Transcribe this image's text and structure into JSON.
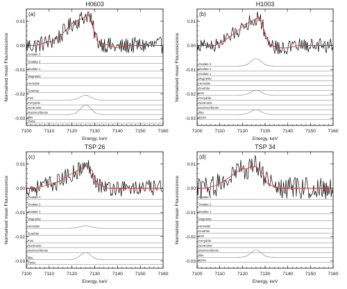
{
  "chart_data": [
    {
      "type": "line",
      "title": "H0603",
      "panel_label": "(a)",
      "xlabel": "Energy, keV",
      "ylabel": "Normalised mean Flouresscence",
      "xlim": [
        7100,
        7160
      ],
      "ylim": [
        -0.033,
        0.015
      ],
      "xticks": [
        7100,
        7110,
        7120,
        7130,
        7140,
        7150,
        7160
      ],
      "yticks": [
        0.01,
        0.0,
        -0.01,
        -0.02,
        -0.03
      ],
      "ytick_labels": [
        "0.01",
        "0.00",
        "-0.01",
        "-0.02",
        "-0.03"
      ],
      "grid": false,
      "series": [
        {
          "name": "",
          "role": "data",
          "color": "#000000",
          "x": [
            7100,
            7104,
            7108,
            7112,
            7115,
            7118,
            7120,
            7122,
            7124,
            7126,
            7127,
            7128,
            7129,
            7130,
            7131,
            7133,
            7136,
            7140,
            7145,
            7150,
            7155,
            7160
          ],
          "y": [
            0.0,
            0.0,
            0.001,
            0.002,
            0.004,
            0.007,
            0.009,
            0.01,
            0.011,
            0.012,
            0.013,
            0.011,
            0.008,
            0.005,
            0.002,
            0.001,
            0.0,
            -0.001,
            0.0,
            0.0,
            0.0,
            0.0
          ],
          "noise": 0.0035
        },
        {
          "name": "",
          "role": "fit",
          "color": "#e03030",
          "x": [
            7100,
            7104,
            7108,
            7112,
            7115,
            7118,
            7120,
            7122,
            7124,
            7126,
            7127,
            7128,
            7129,
            7130,
            7131,
            7133,
            7136,
            7140,
            7145,
            7150,
            7155,
            7160
          ],
          "y": [
            0.0,
            0.0,
            0.001,
            0.002,
            0.004,
            0.007,
            0.009,
            0.01,
            0.011,
            0.012,
            0.013,
            0.011,
            0.008,
            0.005,
            0.002,
            0.001,
            0.0,
            -0.001,
            0.0,
            0.0,
            0.0,
            0.0
          ]
        }
      ],
      "components": [
        {
          "name": "Oxalate 3",
          "baseline": -0.0045,
          "peak": 0.0
        },
        {
          "name": "Oxalate 2",
          "baseline": -0.0075,
          "peak": 0.0
        },
        {
          "name": "Oxalate 1",
          "baseline": -0.0105,
          "peak": 0.0
        },
        {
          "name": "Magnetite",
          "baseline": -0.0135,
          "peak": 0.0
        },
        {
          "name": "Hematite",
          "baseline": -0.0165,
          "peak": 0.0
        },
        {
          "name": "Goethite",
          "baseline": -0.0195,
          "peak": 0.0
        },
        {
          "name": "FeO",
          "baseline": -0.0225,
          "peak": 0.002
        },
        {
          "name": "Ferrydrite",
          "baseline": -0.0245,
          "peak": 0.0
        },
        {
          "name": "Nontronite",
          "baseline": -0.0265,
          "peak": 0.0
        },
        {
          "name": "Montmorillonite",
          "baseline": -0.0285,
          "peak": 0.004
        },
        {
          "name": "Illite",
          "baseline": -0.0305,
          "peak": 0.0
        },
        {
          "name": "Pyrite",
          "baseline": -0.032,
          "peak": 0.0
        }
      ]
    },
    {
      "type": "line",
      "title": "H1003",
      "panel_label": "(b)",
      "xlabel": "Energy, keV",
      "ylabel": "Normalised mean Flouresscence",
      "xlim": [
        7100,
        7160
      ],
      "ylim": [
        -0.033,
        0.015
      ],
      "xticks": [
        7100,
        7110,
        7120,
        7130,
        7140,
        7150,
        7160
      ],
      "yticks": [
        0.01,
        0.0,
        -0.01,
        -0.02,
        -0.03
      ],
      "ytick_labels": [
        "0.01",
        "0.00",
        "-0.01",
        "-0.02",
        "-0.03"
      ],
      "grid": false,
      "series": [
        {
          "name": "",
          "role": "data",
          "color": "#000000",
          "x": [
            7100,
            7104,
            7108,
            7112,
            7115,
            7118,
            7120,
            7122,
            7124,
            7126,
            7127,
            7128,
            7129,
            7130,
            7131,
            7133,
            7136,
            7140,
            7145,
            7150,
            7155,
            7160
          ],
          "y": [
            0.0,
            0.0,
            0.0,
            0.002,
            0.004,
            0.006,
            0.008,
            0.009,
            0.01,
            0.011,
            0.012,
            0.01,
            0.008,
            0.005,
            0.002,
            0.0,
            -0.001,
            -0.001,
            0.0,
            0.0,
            0.0,
            0.0
          ],
          "noise": 0.003
        },
        {
          "name": "",
          "role": "fit",
          "color": "#e03030",
          "x": [
            7100,
            7104,
            7108,
            7112,
            7115,
            7118,
            7120,
            7122,
            7124,
            7126,
            7127,
            7128,
            7129,
            7130,
            7131,
            7133,
            7136,
            7140,
            7145,
            7150,
            7155,
            7160
          ],
          "y": [
            0.0,
            0.0,
            0.0,
            0.002,
            0.004,
            0.006,
            0.008,
            0.009,
            0.01,
            0.011,
            0.012,
            0.01,
            0.008,
            0.005,
            0.002,
            0.0,
            -0.001,
            -0.001,
            0.0,
            0.0,
            0.0,
            0.0
          ]
        }
      ],
      "components": [
        {
          "name": "Oxalate 3",
          "baseline": -0.0085,
          "peak": 0.003
        },
        {
          "name": "Oxalate 2",
          "baseline": -0.0105,
          "peak": 0.0
        },
        {
          "name": "Oxalate 1",
          "baseline": -0.0125,
          "peak": 0.0
        },
        {
          "name": "Magnetite",
          "baseline": -0.0145,
          "peak": 0.0
        },
        {
          "name": "Hematite",
          "baseline": -0.0165,
          "peak": 0.0
        },
        {
          "name": "Goethite",
          "baseline": -0.0185,
          "peak": 0.0
        },
        {
          "name": "FeO",
          "baseline": -0.0205,
          "peak": 0.002
        },
        {
          "name": "Ferrydrite",
          "baseline": -0.0225,
          "peak": 0.0
        },
        {
          "name": "Nontronite",
          "baseline": -0.0245,
          "peak": 0.0
        },
        {
          "name": "Montmorillonite",
          "baseline": -0.0265,
          "peak": 0.0
        },
        {
          "name": "Illite",
          "baseline": -0.0285,
          "peak": 0.002
        },
        {
          "name": "Pyrite",
          "baseline": -0.0305,
          "peak": 0.0
        }
      ]
    },
    {
      "type": "line",
      "title": "TSP 26",
      "panel_label": "(c)",
      "xlabel": "Energy, keV",
      "ylabel": "Normalised mean Flouresscence",
      "xlim": [
        7100,
        7160
      ],
      "ylim": [
        -0.033,
        0.015
      ],
      "xticks": [
        7100,
        7110,
        7120,
        7130,
        7140,
        7150,
        7160
      ],
      "yticks": [
        0.01,
        0.0,
        -0.01,
        -0.02,
        -0.03
      ],
      "ytick_labels": [
        "0.01",
        "0.00",
        "-0.01",
        "-0.02",
        "-0.03"
      ],
      "grid": false,
      "series": [
        {
          "name": "",
          "role": "data",
          "color": "#000000",
          "x": [
            7100,
            7104,
            7108,
            7112,
            7115,
            7118,
            7120,
            7122,
            7124,
            7126,
            7127,
            7128,
            7129,
            7130,
            7131,
            7133,
            7136,
            7140,
            7145,
            7150,
            7155,
            7160
          ],
          "y": [
            0.0,
            0.0,
            0.001,
            0.002,
            0.003,
            0.005,
            0.006,
            0.007,
            0.008,
            0.009,
            0.009,
            0.008,
            0.007,
            0.004,
            0.002,
            0.001,
            0.0,
            0.0,
            0.0,
            0.0,
            0.0,
            0.0
          ],
          "noise": 0.0035
        },
        {
          "name": "",
          "role": "fit",
          "color": "#e03030",
          "x": [
            7100,
            7104,
            7108,
            7112,
            7115,
            7118,
            7120,
            7122,
            7124,
            7126,
            7127,
            7128,
            7129,
            7130,
            7131,
            7133,
            7136,
            7140,
            7145,
            7150,
            7155,
            7160
          ],
          "y": [
            0.0,
            0.0,
            0.001,
            0.002,
            0.003,
            0.005,
            0.006,
            0.007,
            0.008,
            0.009,
            0.009,
            0.008,
            0.007,
            0.004,
            0.002,
            0.001,
            0.0,
            0.0,
            0.0,
            0.0,
            0.0,
            0.0
          ]
        }
      ],
      "components": [
        {
          "name": "Oxalate 3",
          "baseline": -0.0045,
          "peak": 0.0
        },
        {
          "name": "Oxalate 2",
          "baseline": -0.0075,
          "peak": 0.0
        },
        {
          "name": "Oxalate 1",
          "baseline": -0.0105,
          "peak": 0.0
        },
        {
          "name": "Magnetite",
          "baseline": -0.0135,
          "peak": 0.0
        },
        {
          "name": "Hematite",
          "baseline": -0.0165,
          "peak": 0.001
        },
        {
          "name": "Goethite",
          "baseline": -0.0195,
          "peak": 0.0
        },
        {
          "name": "FeO",
          "baseline": -0.0225,
          "peak": 0.0
        },
        {
          "name": "Nontronite",
          "baseline": -0.0245,
          "peak": 0.0
        },
        {
          "name": "Montmorillonite",
          "baseline": -0.0265,
          "peak": 0.0
        },
        {
          "name": "Illite",
          "baseline": -0.0295,
          "peak": 0.003
        },
        {
          "name": "Pyrite",
          "baseline": -0.0315,
          "peak": 0.0
        }
      ]
    },
    {
      "type": "line",
      "title": "TSP 34",
      "panel_label": "(d)",
      "xlabel": "Energy, keV",
      "ylabel": "Normalised mean Flouresscence",
      "xlim": [
        7100,
        7160
      ],
      "ylim": [
        -0.033,
        0.015
      ],
      "xticks": [
        7100,
        7110,
        7120,
        7130,
        7140,
        7150,
        7160
      ],
      "yticks": [
        0.01,
        0.0,
        -0.01,
        -0.02,
        -0.03
      ],
      "ytick_labels": [
        "0.01",
        "0.00",
        "-0.01",
        "-0.02",
        "-0.03"
      ],
      "grid": false,
      "series": [
        {
          "name": "",
          "role": "data",
          "color": "#000000",
          "x": [
            7100,
            7104,
            7108,
            7112,
            7115,
            7118,
            7120,
            7122,
            7124,
            7126,
            7127,
            7128,
            7129,
            7130,
            7131,
            7133,
            7136,
            7140,
            7145,
            7150,
            7155,
            7160
          ],
          "y": [
            0.0,
            0.0,
            0.001,
            0.003,
            0.005,
            0.007,
            0.008,
            0.008,
            0.009,
            0.009,
            0.008,
            0.007,
            0.006,
            0.004,
            0.002,
            0.001,
            0.0,
            0.0,
            0.0,
            0.0,
            0.0,
            0.0
          ],
          "noise": 0.0045
        },
        {
          "name": "",
          "role": "fit",
          "color": "#e03030",
          "x": [
            7100,
            7104,
            7108,
            7112,
            7115,
            7118,
            7120,
            7122,
            7124,
            7126,
            7127,
            7128,
            7129,
            7130,
            7131,
            7133,
            7136,
            7140,
            7145,
            7150,
            7155,
            7160
          ],
          "y": [
            0.0,
            0.0,
            0.001,
            0.003,
            0.005,
            0.007,
            0.008,
            0.008,
            0.009,
            0.009,
            0.008,
            0.007,
            0.006,
            0.004,
            0.002,
            0.001,
            0.0,
            0.0,
            0.0,
            0.0,
            0.0,
            0.0
          ]
        }
      ],
      "components": [
        {
          "name": "Oxalate 3",
          "baseline": -0.0045,
          "peak": 0.0
        },
        {
          "name": "Oxalate 2",
          "baseline": -0.0075,
          "peak": 0.0
        },
        {
          "name": "Oxalate 1",
          "baseline": -0.0105,
          "peak": 0.0
        },
        {
          "name": "Magnetite",
          "baseline": -0.0135,
          "peak": 0.0
        },
        {
          "name": "Hematite",
          "baseline": -0.0165,
          "peak": 0.0
        },
        {
          "name": "Goethite",
          "baseline": -0.0185,
          "peak": 0.0
        },
        {
          "name": "FeO",
          "baseline": -0.0205,
          "peak": 0.0
        },
        {
          "name": "Ferrydrite",
          "baseline": -0.0225,
          "peak": 0.0
        },
        {
          "name": "Nontronite",
          "baseline": -0.0245,
          "peak": 0.0
        },
        {
          "name": "Montmorillonite",
          "baseline": -0.0265,
          "peak": 0.0
        },
        {
          "name": "Illite",
          "baseline": -0.0285,
          "peak": 0.003
        },
        {
          "name": "Pyrite",
          "baseline": -0.0305,
          "peak": 0.0
        }
      ]
    }
  ]
}
